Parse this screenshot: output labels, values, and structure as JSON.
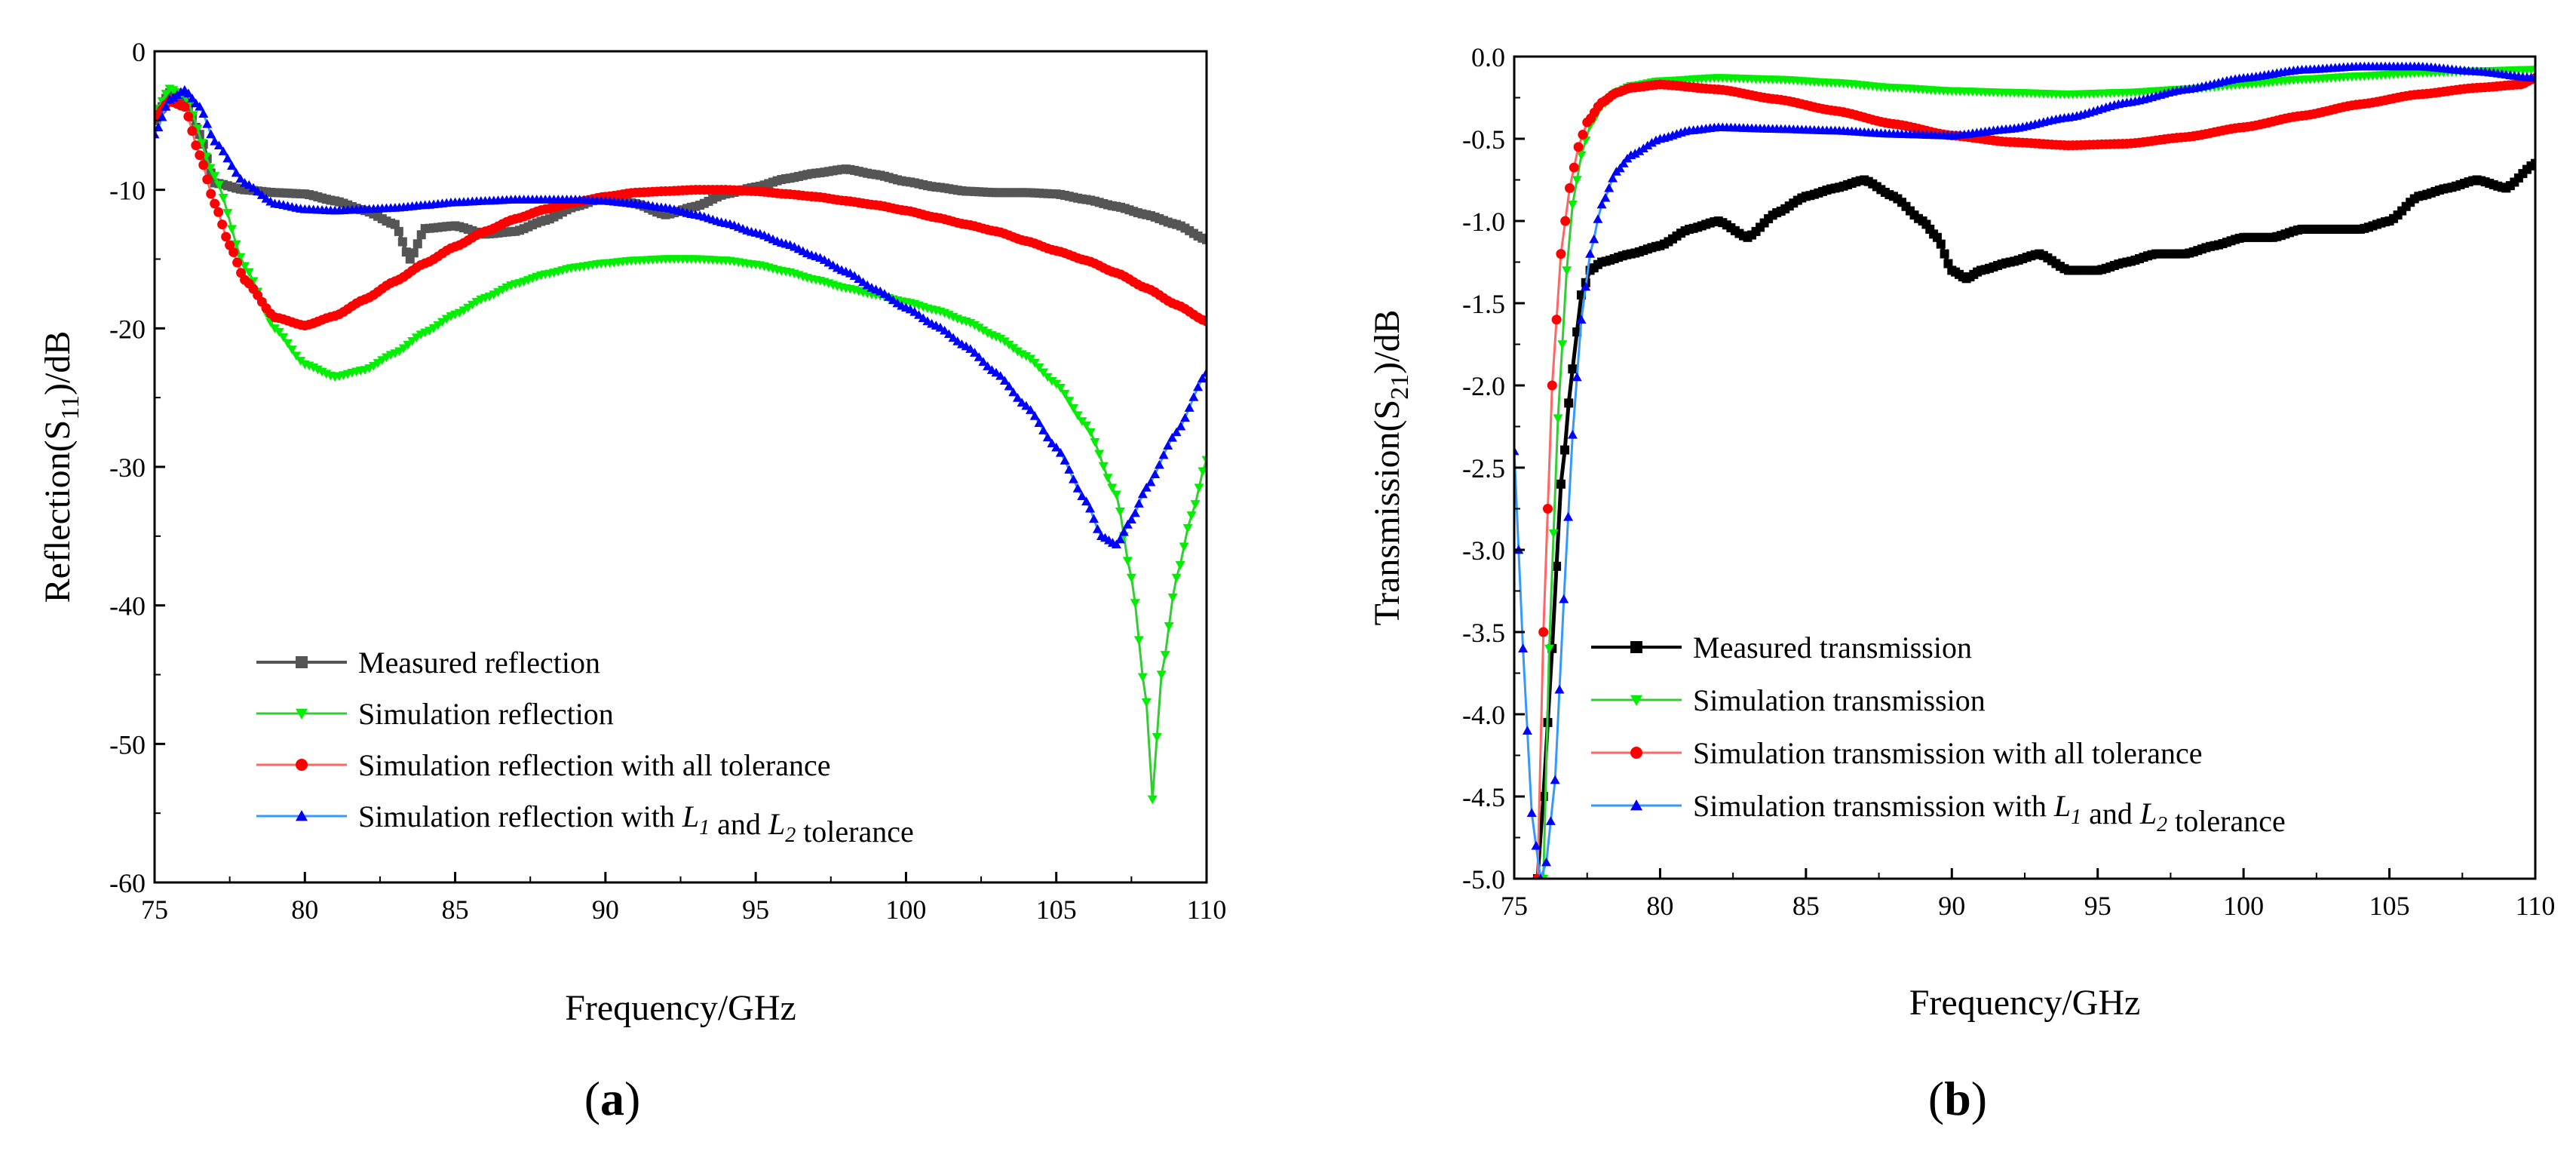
{
  "colors": {
    "measured_a": "#555555",
    "measured_b": "#000000",
    "green": "#00ee00",
    "red": "#ff0000",
    "blue_a": "#0000ff",
    "blue_b": "#0000ff",
    "thin_green": "#33cc33",
    "thin_red": "#ff6666",
    "thin_blue": "#3399ff"
  },
  "chart_data": [
    {
      "id": "a",
      "type": "line",
      "panel_label": "(a)",
      "panel_letter": "a",
      "xlabel": "Frequency/GHz",
      "ylabel": "Reflection(S11)/dB",
      "ylabel_main": "Reflection(S",
      "ylabel_sub": "11",
      "ylabel_tail": ")/dB",
      "xlim": [
        75,
        110
      ],
      "ylim": [
        -60,
        0
      ],
      "xticks": [
        75,
        80,
        85,
        90,
        95,
        100,
        105,
        110
      ],
      "xtick_labels": [
        "75",
        "80",
        "85",
        "90",
        "95",
        "100",
        "105",
        "110"
      ],
      "yticks": [
        0,
        -10,
        -20,
        -30,
        -40,
        -50,
        -60
      ],
      "ytick_labels": [
        "0",
        "-10",
        "-20",
        "-30",
        "-40",
        "-50",
        "-60"
      ],
      "legend_position": "bottom-left",
      "series": [
        {
          "name": "Measured reflection",
          "legend_parts": [
            "Measured reflection"
          ],
          "color_key": "measured_a",
          "marker": "square",
          "x": [
            75.0,
            75.5,
            76.0,
            76.5,
            77.0,
            78.0,
            79.0,
            80.0,
            81.0,
            82.0,
            83.0,
            83.5,
            84.0,
            85.0,
            86.0,
            87.0,
            88.0,
            89.0,
            90.0,
            91.0,
            92.0,
            93.0,
            94.0,
            95.0,
            96.0,
            97.0,
            98.0,
            99.0,
            100.0,
            101.0,
            102.0,
            103.0,
            104.0,
            105.0,
            106.0,
            107.0,
            108.0,
            109.0,
            110.0
          ],
          "y": [
            -5.0,
            -3.0,
            -3.5,
            -6.0,
            -9.5,
            -10.0,
            -10.2,
            -10.3,
            -10.8,
            -11.5,
            -12.5,
            -15.0,
            -12.8,
            -12.6,
            -13.2,
            -13.0,
            -12.2,
            -11.2,
            -10.5,
            -11.0,
            -11.8,
            -11.2,
            -10.3,
            -9.8,
            -9.2,
            -8.8,
            -8.5,
            -8.9,
            -9.4,
            -9.8,
            -10.1,
            -10.2,
            -10.2,
            -10.3,
            -10.7,
            -11.2,
            -11.8,
            -12.5,
            -13.6
          ]
        },
        {
          "name": "Simulation reflection",
          "legend_parts": [
            "Simulation reflection"
          ],
          "color_key": "green",
          "line_key": "thin_green",
          "marker": "triangle-down",
          "x": [
            75.0,
            75.5,
            76.0,
            77.0,
            78.0,
            79.0,
            80.0,
            81.0,
            82.0,
            83.0,
            84.0,
            85.0,
            86.0,
            87.0,
            88.0,
            89.0,
            90.0,
            91.0,
            92.0,
            93.0,
            94.0,
            95.0,
            96.0,
            97.0,
            98.0,
            99.0,
            100.0,
            101.0,
            102.0,
            103.0,
            104.0,
            105.0,
            106.0,
            107.0,
            107.5,
            108.0,
            108.2,
            108.5,
            109.0,
            109.5,
            110.0
          ],
          "y": [
            -4.5,
            -2.7,
            -3.2,
            -9.0,
            -15.5,
            -20.0,
            -22.6,
            -23.5,
            -23.0,
            -21.8,
            -20.3,
            -19.0,
            -17.8,
            -16.8,
            -16.1,
            -15.6,
            -15.3,
            -15.1,
            -15.0,
            -15.0,
            -15.1,
            -15.4,
            -15.9,
            -16.5,
            -17.1,
            -17.6,
            -18.1,
            -18.7,
            -19.5,
            -20.6,
            -22.0,
            -24.0,
            -27.0,
            -32.0,
            -38.0,
            -47.0,
            -54.0,
            -45.0,
            -38.0,
            -33.5,
            -29.5
          ]
        },
        {
          "name": "Simulation reflection with all tolerance",
          "legend_parts": [
            "Simulation reflection with all tolerance"
          ],
          "color_key": "red",
          "line_key": "thin_red",
          "marker": "circle",
          "x": [
            75.0,
            75.5,
            76.0,
            76.5,
            77.0,
            77.5,
            78.0,
            79.0,
            80.0,
            81.0,
            82.0,
            83.0,
            84.0,
            85.0,
            86.0,
            87.0,
            88.0,
            89.0,
            90.0,
            91.0,
            92.0,
            93.0,
            94.0,
            95.0,
            96.0,
            97.0,
            98.0,
            99.0,
            100.0,
            101.0,
            102.0,
            103.0,
            104.0,
            105.0,
            106.0,
            107.0,
            108.0,
            109.0,
            110.0
          ],
          "y": [
            -4.8,
            -3.6,
            -4.0,
            -7.5,
            -11.0,
            -14.0,
            -16.5,
            -19.2,
            -19.8,
            -19.1,
            -17.9,
            -16.6,
            -15.3,
            -14.1,
            -13.0,
            -12.1,
            -11.4,
            -10.9,
            -10.5,
            -10.2,
            -10.1,
            -10.0,
            -10.0,
            -10.1,
            -10.3,
            -10.5,
            -10.8,
            -11.1,
            -11.5,
            -12.0,
            -12.5,
            -13.0,
            -13.7,
            -14.4,
            -15.1,
            -16.0,
            -17.1,
            -18.3,
            -19.5
          ]
        },
        {
          "name": "Simulation reflection with L1 and L2 tolerance",
          "legend_parts": [
            "Simulation reflection with ",
            "L",
            "1",
            " and ",
            "L",
            "2",
            " tolerance"
          ],
          "color_key": "blue_a",
          "line_key": "thin_blue",
          "marker": "triangle-up",
          "x": [
            75.0,
            75.5,
            76.0,
            76.5,
            77.0,
            78.0,
            79.0,
            80.0,
            81.0,
            82.0,
            83.0,
            84.0,
            85.0,
            86.0,
            87.0,
            88.0,
            89.0,
            90.0,
            91.0,
            92.0,
            93.0,
            94.0,
            95.0,
            96.0,
            97.0,
            98.0,
            99.0,
            100.0,
            101.0,
            102.0,
            103.0,
            104.0,
            105.0,
            106.0,
            106.5,
            107.0,
            107.5,
            108.0,
            109.0,
            110.0
          ],
          "y": [
            -6.0,
            -3.5,
            -2.8,
            -4.0,
            -6.5,
            -9.5,
            -11.0,
            -11.4,
            -11.5,
            -11.4,
            -11.3,
            -11.1,
            -10.9,
            -10.8,
            -10.7,
            -10.7,
            -10.7,
            -10.8,
            -11.0,
            -11.3,
            -11.8,
            -12.4,
            -13.1,
            -13.9,
            -14.8,
            -15.9,
            -17.2,
            -18.5,
            -19.8,
            -21.3,
            -23.2,
            -25.6,
            -28.6,
            -32.5,
            -35.0,
            -35.6,
            -33.8,
            -31.5,
            -27.5,
            -23.2
          ]
        }
      ]
    },
    {
      "id": "b",
      "type": "line",
      "panel_label": "(b)",
      "panel_letter": "b",
      "xlabel": "Frequency/GHz",
      "ylabel": "Transmission(S21)/dB",
      "ylabel_main": "Transmission(S",
      "ylabel_sub": "21",
      "ylabel_tail": ")/dB",
      "xlim": [
        75,
        110
      ],
      "ylim": [
        -5.0,
        0.0
      ],
      "xticks": [
        75,
        80,
        85,
        90,
        95,
        100,
        105,
        110
      ],
      "xtick_labels": [
        "75",
        "80",
        "85",
        "90",
        "95",
        "100",
        "105",
        "110"
      ],
      "yticks": [
        0.0,
        -0.5,
        -1.0,
        -1.5,
        -2.0,
        -2.5,
        -3.0,
        -3.5,
        -4.0,
        -4.5,
        -5.0
      ],
      "ytick_labels": [
        "0.0",
        "-0.5",
        "-1.0",
        "-1.5",
        "-2.0",
        "-2.5",
        "-3.0",
        "-3.5",
        "-4.0",
        "-4.5",
        "-5.0"
      ],
      "legend_position": "bottom-left",
      "series": [
        {
          "name": "Measured transmission",
          "legend_parts": [
            "Measured transmission"
          ],
          "color_key": "measured_b",
          "marker": "square",
          "x": [
            75.8,
            76.0,
            76.3,
            76.6,
            77.0,
            77.3,
            77.6,
            78.0,
            79.0,
            80.0,
            81.0,
            82.0,
            83.0,
            84.0,
            85.0,
            86.0,
            87.0,
            88.0,
            89.0,
            89.5,
            90.0,
            90.5,
            91.0,
            92.0,
            93.0,
            94.0,
            95.0,
            96.0,
            97.0,
            98.0,
            99.0,
            100.0,
            101.0,
            102.0,
            103.0,
            104.0,
            105.0,
            106.0,
            107.0,
            108.0,
            109.0,
            110.0
          ],
          "y": [
            -5.0,
            -4.5,
            -3.6,
            -2.6,
            -1.9,
            -1.45,
            -1.3,
            -1.25,
            -1.2,
            -1.15,
            -1.05,
            -1.0,
            -1.1,
            -0.95,
            -0.85,
            -0.8,
            -0.75,
            -0.85,
            -1.0,
            -1.1,
            -1.3,
            -1.35,
            -1.3,
            -1.25,
            -1.2,
            -1.3,
            -1.3,
            -1.25,
            -1.2,
            -1.2,
            -1.15,
            -1.1,
            -1.1,
            -1.05,
            -1.05,
            -1.05,
            -1.0,
            -0.85,
            -0.8,
            -0.75,
            -0.8,
            -0.65
          ]
        },
        {
          "name": "Simulation transmission",
          "legend_parts": [
            "Simulation transmission"
          ],
          "color_key": "green",
          "line_key": "thin_green",
          "marker": "triangle-down",
          "x": [
            76.0,
            76.2,
            76.5,
            76.8,
            77.0,
            77.3,
            77.6,
            78.0,
            78.5,
            79.0,
            80.0,
            82.0,
            84.0,
            86.0,
            88.0,
            90.0,
            92.0,
            94.0,
            96.0,
            98.0,
            100.0,
            102.0,
            104.0,
            106.0,
            108.0,
            110.0
          ],
          "y": [
            -5.0,
            -3.6,
            -2.2,
            -1.3,
            -0.9,
            -0.6,
            -0.42,
            -0.3,
            -0.22,
            -0.18,
            -0.15,
            -0.13,
            -0.14,
            -0.16,
            -0.19,
            -0.21,
            -0.22,
            -0.23,
            -0.22,
            -0.2,
            -0.17,
            -0.14,
            -0.12,
            -0.1,
            -0.09,
            -0.08
          ]
        },
        {
          "name": "Simulation transmission with all tolerance",
          "legend_parts": [
            "Simulation transmission with all tolerance"
          ],
          "color_key": "red",
          "line_key": "thin_red",
          "marker": "circle",
          "x": [
            75.8,
            76.0,
            76.3,
            76.6,
            76.9,
            77.2,
            77.5,
            78.0,
            78.5,
            79.0,
            80.0,
            82.0,
            84.0,
            86.0,
            88.0,
            90.0,
            92.0,
            94.0,
            96.0,
            98.0,
            100.0,
            102.0,
            104.0,
            106.0,
            108.0,
            109.5,
            110.0
          ],
          "y": [
            -5.0,
            -3.5,
            -2.0,
            -1.2,
            -0.8,
            -0.55,
            -0.4,
            -0.28,
            -0.22,
            -0.19,
            -0.17,
            -0.2,
            -0.26,
            -0.33,
            -0.41,
            -0.48,
            -0.52,
            -0.54,
            -0.53,
            -0.49,
            -0.43,
            -0.36,
            -0.29,
            -0.23,
            -0.19,
            -0.17,
            -0.13
          ]
        },
        {
          "name": "Simulation transmission with L1 and L2 tolerance",
          "legend_parts": [
            "Simulation transmission with ",
            "L",
            "1",
            " and ",
            "L",
            "2",
            " tolerance"
          ],
          "color_key": "blue_b",
          "line_key": "thin_blue",
          "marker": "triangle-up",
          "x": [
            75.0,
            75.3,
            75.6,
            75.9,
            76.1,
            76.4,
            76.7,
            77.0,
            77.3,
            77.6,
            78.0,
            78.5,
            79.0,
            80.0,
            81.0,
            82.0,
            84.0,
            86.0,
            88.0,
            90.0,
            92.0,
            94.0,
            96.0,
            98.0,
            100.0,
            102.0,
            104.0,
            106.0,
            108.0,
            110.0
          ],
          "y": [
            -2.4,
            -3.6,
            -4.6,
            -5.0,
            -4.9,
            -4.4,
            -3.3,
            -2.3,
            -1.6,
            -1.2,
            -0.9,
            -0.7,
            -0.6,
            -0.5,
            -0.45,
            -0.43,
            -0.44,
            -0.45,
            -0.47,
            -0.48,
            -0.44,
            -0.37,
            -0.28,
            -0.2,
            -0.13,
            -0.08,
            -0.06,
            -0.06,
            -0.09,
            -0.13
          ]
        }
      ]
    }
  ]
}
